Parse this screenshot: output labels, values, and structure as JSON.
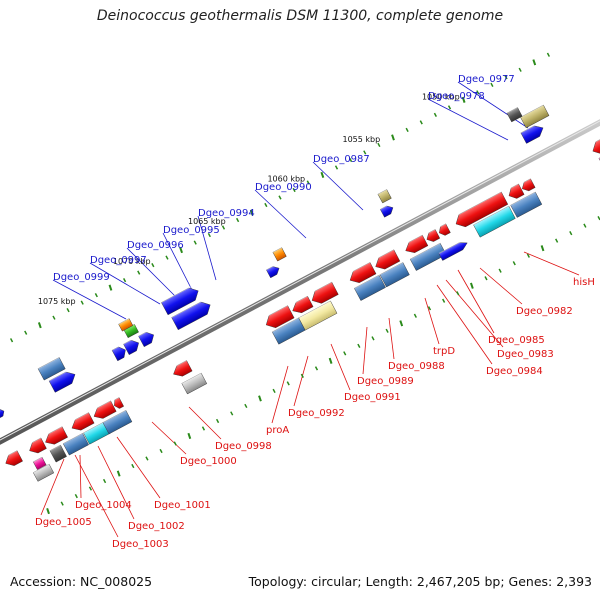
{
  "title": "Deinococcus geothermalis DSM 11300, complete genome",
  "accession": "Accession: NC_008025",
  "topology": "Topology: circular; Length: 2,467,205 bp; Genes: 2,393",
  "kbp_labels": [
    "1050 kbp",
    "1055 kbp",
    "1060 kbp",
    "1065 kbp",
    "1070 kbp",
    "1075 kbp"
  ],
  "forward_labels": [
    "Dgeo_0977",
    "Dgeo_0978",
    "Dgeo_0987",
    "Dgeo_0990",
    "Dgeo_0994",
    "Dgeo_0995",
    "Dgeo_0996",
    "Dgeo_0997",
    "Dgeo_0999"
  ],
  "reverse_labels": [
    "hisH",
    "Dgeo_0982",
    "Dgeo_0985",
    "Dgeo_0983",
    "Dgeo_0984",
    "trpD",
    "Dgeo_0988",
    "Dgeo_0989",
    "Dgeo_0991",
    "Dgeo_0992",
    "proA",
    "Dgeo_0998",
    "Dgeo_1000",
    "Dgeo_1001",
    "Dgeo_1002",
    "Dgeo_1003",
    "Dgeo_1004",
    "Dgeo_1005"
  ],
  "colors": {
    "forward_label": "#1a1acc",
    "reverse_label": "#dd1111",
    "backbone": "#8a8a8a",
    "tick": "#2a8a1a"
  }
}
